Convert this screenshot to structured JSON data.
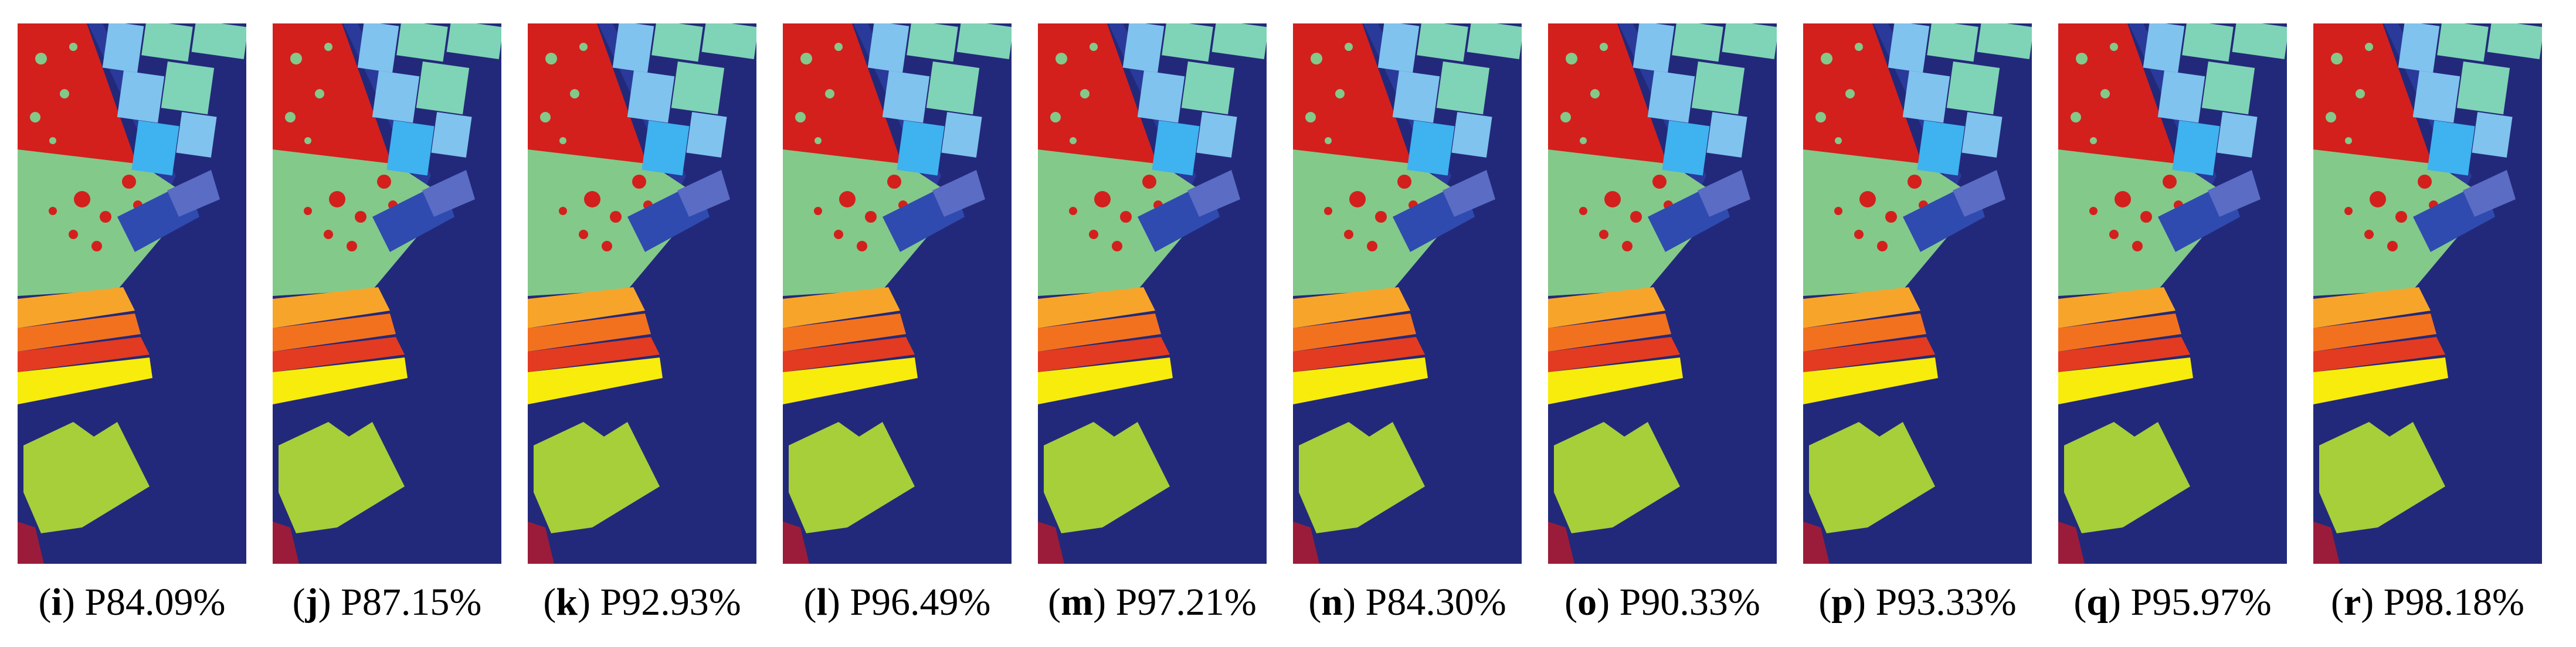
{
  "colors": {
    "background": "#23297a",
    "dark_strip": "#2a3a9a",
    "red": "#d3201c",
    "light_green": "#83c98a",
    "light_blue": "#7fc3ee",
    "sky_blue": "#3fb2f0",
    "teal": "#7fd3b6",
    "medium_blue": "#2f4bb0",
    "orange": "#f7a52a",
    "dark_orange": "#f2711f",
    "deep_red": "#e23b21",
    "yellow": "#f7ec0c",
    "lime": "#a6cf3a",
    "crimson": "#9b1c3a"
  },
  "panels": [
    {
      "letter": "i",
      "value": "P84.09%"
    },
    {
      "letter": "j",
      "value": "P87.15%"
    },
    {
      "letter": "k",
      "value": "P92.93%"
    },
    {
      "letter": "l",
      "value": "P96.49%"
    },
    {
      "letter": "m",
      "value": "P97.21%"
    },
    {
      "letter": "n",
      "value": "P84.30%"
    },
    {
      "letter": "o",
      "value": "P90.33%"
    },
    {
      "letter": "p",
      "value": "P93.33%"
    },
    {
      "letter": "q",
      "value": "P95.97%"
    },
    {
      "letter": "r",
      "value": "P98.18%"
    }
  ]
}
